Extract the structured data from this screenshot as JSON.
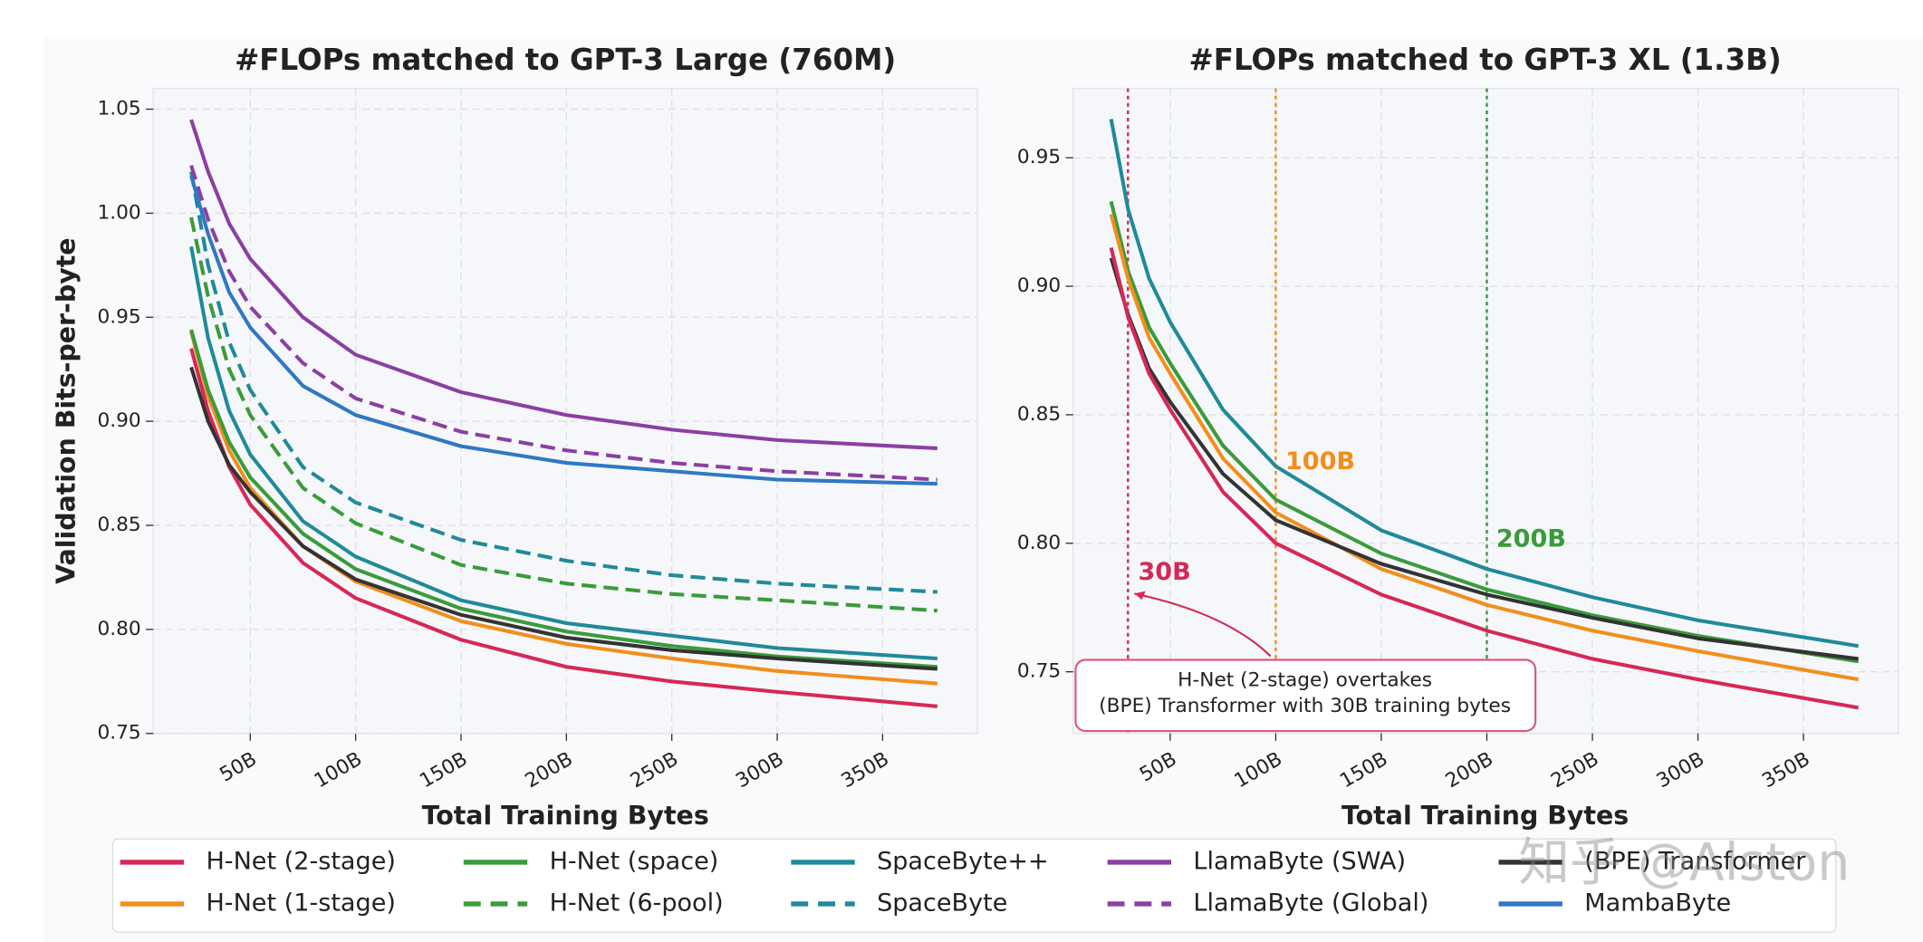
{
  "chart_data": [
    {
      "type": "line",
      "title": "#FLOPs matched to GPT-3 Large (760M)",
      "xlabel": "Total Training Bytes",
      "ylabel": "Validation Bits-per-byte",
      "xlim": [
        4,
        395
      ],
      "ylim": [
        0.75,
        1.06
      ],
      "grid": true,
      "xticks": [
        {
          "value": 50,
          "label": "50B"
        },
        {
          "value": 100,
          "label": "100B"
        },
        {
          "value": 150,
          "label": "150B"
        },
        {
          "value": 200,
          "label": "200B"
        },
        {
          "value": 250,
          "label": "250B"
        },
        {
          "value": 300,
          "label": "300B"
        },
        {
          "value": 350,
          "label": "350B"
        }
      ],
      "yticks": [
        0.75,
        {
          "value": 0.8,
          "label": "0.80"
        },
        0.85,
        {
          "value": 0.9,
          "label": "0.90"
        },
        0.95,
        {
          "value": 1,
          "label": "1.00"
        },
        1.05
      ],
      "x": [
        22,
        30,
        40,
        50,
        75,
        100,
        150,
        200,
        250,
        300,
        376
      ],
      "series": [
        {
          "name": "H-Net (2-stage)",
          "color": "#d62856",
          "dash": false,
          "values": [
            0.935,
            0.905,
            0.878,
            0.86,
            0.832,
            0.815,
            0.795,
            0.782,
            0.775,
            0.77,
            0.763
          ]
        },
        {
          "name": "H-Net (1-stage)",
          "color": "#f28e1c",
          "dash": false,
          "values": [
            0.943,
            0.912,
            0.886,
            0.868,
            0.84,
            0.823,
            0.804,
            0.793,
            0.786,
            0.78,
            0.774
          ]
        },
        {
          "name": "H-Net (space)",
          "color": "#3a9b3a",
          "dash": false,
          "values": [
            0.944,
            0.915,
            0.89,
            0.873,
            0.846,
            0.829,
            0.81,
            0.799,
            0.792,
            0.787,
            0.782
          ]
        },
        {
          "name": "H-Net (6-pool)",
          "color": "#3a9b3a",
          "dash": true,
          "values": [
            0.998,
            0.96,
            0.925,
            0.903,
            0.868,
            0.851,
            0.831,
            0.822,
            0.817,
            0.814,
            0.809
          ]
        },
        {
          "name": "SpaceByte++",
          "color": "#1f8a9a",
          "dash": false,
          "values": [
            0.984,
            0.94,
            0.905,
            0.884,
            0.852,
            0.835,
            0.814,
            0.803,
            0.797,
            0.791,
            0.786
          ]
        },
        {
          "name": "SpaceByte",
          "color": "#1f8a9a",
          "dash": true,
          "values": [
            1.02,
            0.975,
            0.938,
            0.915,
            0.878,
            0.861,
            0.843,
            0.833,
            0.826,
            0.822,
            0.818
          ]
        },
        {
          "name": "LlamaByte (SWA)",
          "color": "#8c3fa3",
          "dash": false,
          "values": [
            1.045,
            1.02,
            0.995,
            0.978,
            0.95,
            0.932,
            0.914,
            0.903,
            0.896,
            0.891,
            0.887
          ]
        },
        {
          "name": "LlamaByte (Global)",
          "color": "#8c3fa3",
          "dash": true,
          "values": [
            1.023,
            0.997,
            0.972,
            0.955,
            0.928,
            0.911,
            0.895,
            0.886,
            0.88,
            0.876,
            0.872
          ]
        },
        {
          "name": "(BPE) Transformer",
          "color": "#333333",
          "dash": false,
          "values": [
            0.926,
            0.9,
            0.879,
            0.866,
            0.84,
            0.824,
            0.807,
            0.796,
            0.79,
            0.786,
            0.781
          ]
        },
        {
          "name": "MambaByte",
          "color": "#2f78c4",
          "dash": false,
          "values": [
            1.018,
            0.99,
            0.962,
            0.945,
            0.917,
            0.903,
            0.888,
            0.88,
            0.876,
            0.872,
            0.87
          ]
        }
      ]
    },
    {
      "type": "line",
      "title": "#FLOPs matched to GPT-3 XL (1.3B)",
      "xlabel": "Total Training Bytes",
      "xlim": [
        4,
        395
      ],
      "ylim": [
        0.726,
        0.977
      ],
      "grid": true,
      "xticks": [
        {
          "value": 50,
          "label": "50B"
        },
        {
          "value": 100,
          "label": "100B"
        },
        {
          "value": 150,
          "label": "150B"
        },
        {
          "value": 200,
          "label": "200B"
        },
        {
          "value": 250,
          "label": "250B"
        },
        {
          "value": 300,
          "label": "300B"
        },
        {
          "value": 350,
          "label": "350B"
        }
      ],
      "yticks": [
        0.75,
        {
          "value": 0.8,
          "label": "0.80"
        },
        0.85,
        {
          "value": 0.9,
          "label": "0.90"
        },
        0.95
      ],
      "x": [
        22,
        30,
        40,
        50,
        75,
        100,
        150,
        200,
        250,
        300,
        376
      ],
      "series": [
        {
          "name": "SpaceByte++",
          "color": "#1f8a9a",
          "dash": false,
          "values": [
            0.965,
            0.93,
            0.903,
            0.886,
            0.852,
            0.83,
            0.805,
            0.79,
            0.779,
            0.77,
            0.76
          ]
        },
        {
          "name": "H-Net (space)",
          "color": "#3a9b3a",
          "dash": false,
          "values": [
            0.933,
            0.906,
            0.884,
            0.87,
            0.838,
            0.817,
            0.796,
            0.782,
            0.772,
            0.764,
            0.754
          ]
        },
        {
          "name": "H-Net (1-stage)",
          "color": "#f28e1c",
          "dash": false,
          "values": [
            0.928,
            0.903,
            0.88,
            0.866,
            0.833,
            0.812,
            0.79,
            0.776,
            0.766,
            0.758,
            0.747
          ]
        },
        {
          "name": "(BPE) Transformer",
          "color": "#333333",
          "dash": false,
          "values": [
            0.911,
            0.889,
            0.868,
            0.855,
            0.827,
            0.809,
            0.792,
            0.78,
            0.771,
            0.763,
            0.755
          ]
        },
        {
          "name": "H-Net (2-stage)",
          "color": "#d62856",
          "dash": false,
          "values": [
            0.915,
            0.888,
            0.866,
            0.852,
            0.82,
            0.8,
            0.78,
            0.766,
            0.755,
            0.747,
            0.736
          ]
        }
      ],
      "vlines": [
        {
          "x": 30,
          "label": "30B",
          "color": "#d62856"
        },
        {
          "x": 100,
          "label": "100B",
          "color": "#f28e1c"
        },
        {
          "x": 200,
          "label": "200B",
          "color": "#3a9b3a"
        }
      ],
      "annotation": [
        "H-Net (2-stage) overtakes",
        "(BPE) Transformer with 30B training bytes"
      ]
    }
  ],
  "watermark": "知乎 @Alston"
}
